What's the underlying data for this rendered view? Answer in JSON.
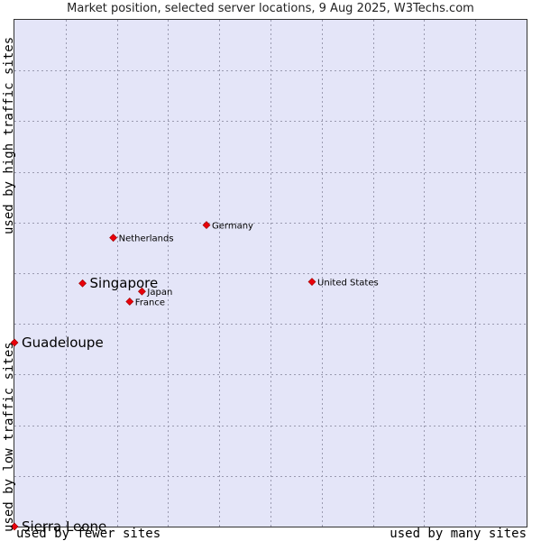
{
  "chart_data": {
    "type": "scatter",
    "title": "Market position, selected server locations, 9 Aug 2025, W3Techs.com",
    "y_axis_labels": {
      "high": "used by high traffic sites",
      "low": "used by low traffic sites"
    },
    "x_axis_labels": {
      "low": "used by fewer sites",
      "high": "used by many sites"
    },
    "xlim": [
      0,
      10
    ],
    "ylim": [
      0,
      10
    ],
    "grid": true,
    "marker_color": "#e8000b",
    "points": [
      {
        "name": "Germany",
        "x": 3.75,
        "y": 5.95,
        "highlight": false
      },
      {
        "name": "Netherlands",
        "x": 1.93,
        "y": 5.7,
        "highlight": false
      },
      {
        "name": "Singapore",
        "x": 1.33,
        "y": 4.8,
        "highlight": true
      },
      {
        "name": "Japan",
        "x": 2.49,
        "y": 4.64,
        "highlight": false
      },
      {
        "name": "France",
        "x": 2.25,
        "y": 4.44,
        "highlight": false
      },
      {
        "name": "United States",
        "x": 5.81,
        "y": 4.83,
        "highlight": false
      },
      {
        "name": "Guadeloupe",
        "x": 0.0,
        "y": 3.63,
        "highlight": true
      },
      {
        "name": "Sierra Leone",
        "x": 0.0,
        "y": 0.0,
        "highlight": true
      }
    ]
  }
}
